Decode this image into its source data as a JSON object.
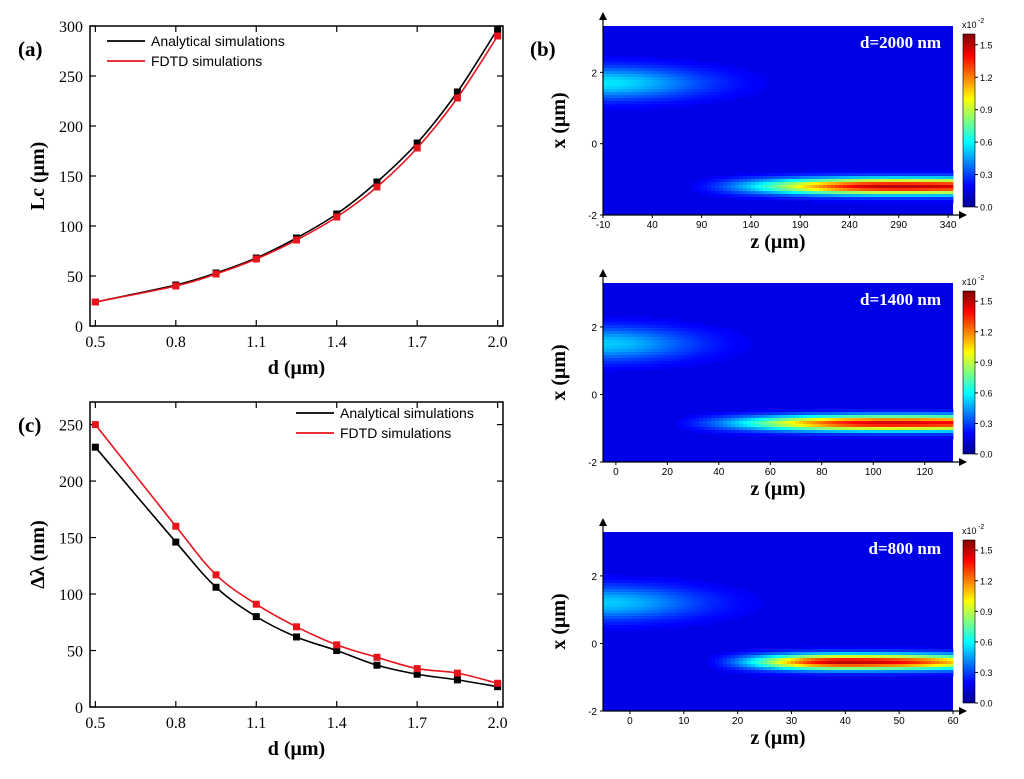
{
  "panel_labels": {
    "a": "(a)",
    "b": "(b)",
    "c": "(c)"
  },
  "colors": {
    "analytical": "#000000",
    "fdtd": "#e8141c",
    "heatmap_bg": "#0a2ba8"
  },
  "chart_data": [
    {
      "id": "a",
      "type": "line",
      "xlabel": "d (μm)",
      "ylabel": "Lc (μm)",
      "xlim": [
        0.48,
        2.02
      ],
      "ylim": [
        0,
        300
      ],
      "xticks": [
        0.5,
        0.8,
        1.1,
        1.4,
        1.7,
        2.0
      ],
      "xtick_labels": [
        "0.5",
        "0.8",
        "1.1",
        "1.4",
        "1.7",
        "2.0"
      ],
      "yticks": [
        0,
        50,
        100,
        150,
        200,
        250,
        300
      ],
      "ytick_labels": [
        "0",
        "50",
        "100",
        "150",
        "200",
        "250",
        "300"
      ],
      "legend": "top-left",
      "series": [
        {
          "name": "Analytical simulations",
          "color": "#000000",
          "x": [
            0.5,
            0.8,
            0.95,
            1.1,
            1.25,
            1.4,
            1.55,
            1.7,
            1.85,
            2.0
          ],
          "values": [
            24,
            41,
            53,
            68,
            88,
            112,
            144,
            183,
            234,
            297
          ]
        },
        {
          "name": "FDTD simulations",
          "color": "#e8141c",
          "x": [
            0.5,
            0.8,
            0.95,
            1.1,
            1.25,
            1.4,
            1.55,
            1.7,
            1.85,
            2.0
          ],
          "values": [
            24,
            40,
            52,
            67,
            86,
            109,
            139,
            178,
            228,
            290
          ]
        }
      ]
    },
    {
      "id": "c",
      "type": "line",
      "xlabel": "d (μm)",
      "ylabel": "Δλ (nm)",
      "xlim": [
        0.48,
        2.02
      ],
      "ylim": [
        0,
        270
      ],
      "xticks": [
        0.5,
        0.8,
        1.1,
        1.4,
        1.7,
        2.0
      ],
      "xtick_labels": [
        "0.5",
        "0.8",
        "1.1",
        "1.4",
        "1.7",
        "2.0"
      ],
      "yticks": [
        0,
        50,
        100,
        150,
        200,
        250
      ],
      "ytick_labels": [
        "0",
        "50",
        "100",
        "150",
        "200",
        "250"
      ],
      "legend": "top-right",
      "series": [
        {
          "name": "Analytical simulations",
          "color": "#000000",
          "x": [
            0.5,
            0.8,
            0.95,
            1.1,
            1.25,
            1.4,
            1.55,
            1.7,
            1.85,
            2.0
          ],
          "values": [
            230,
            146,
            106,
            80,
            62,
            50,
            37,
            29,
            24,
            18
          ]
        },
        {
          "name": "FDTD simulations",
          "color": "#e8141c",
          "x": [
            0.5,
            0.8,
            0.95,
            1.1,
            1.25,
            1.4,
            1.55,
            1.7,
            1.85,
            2.0
          ],
          "values": [
            250,
            160,
            117,
            91,
            71,
            55,
            44,
            34,
            30,
            21
          ]
        }
      ]
    },
    {
      "id": "b1",
      "type": "heatmap",
      "label": "d=2000 nm",
      "xlabel": "z (μm)",
      "ylabel": "x (μm)",
      "xlim": [
        -10,
        345
      ],
      "ylim": [
        -2,
        3.3
      ],
      "xticks": [
        -10,
        40,
        90,
        140,
        190,
        240,
        290,
        340
      ],
      "xtick_labels": [
        "-10",
        "40",
        "90",
        "140",
        "190",
        "240",
        "290",
        "340"
      ],
      "yticks": [
        -2,
        0,
        2
      ],
      "ytick_labels": [
        "-2",
        "0",
        "2"
      ],
      "colorbar": {
        "ticks": [
          0,
          0.3,
          0.6,
          0.9,
          1.2,
          1.5
        ],
        "labels": [
          "0.0",
          "0.3",
          "0.6",
          "0.9",
          "1.2",
          "1.5"
        ],
        "max": 1.6,
        "multiplier": "x10",
        "exponent": "-2"
      },
      "input_beam": {
        "z_center": -10,
        "x_center": 1.7,
        "z_extent": 100,
        "x_extent": 0.45,
        "peak": 0.45
      },
      "output_beam": {
        "z_start": 60,
        "z_peak": 285,
        "x_center": -1.2,
        "x_extent": 0.22,
        "peak": 1.5
      }
    },
    {
      "id": "b2",
      "type": "heatmap",
      "label": "d=1400 nm",
      "xlabel": "z (μm)",
      "ylabel": "x (μm)",
      "xlim": [
        -5,
        131
      ],
      "ylim": [
        -2,
        3.3
      ],
      "xticks": [
        0,
        20,
        40,
        60,
        80,
        100,
        120
      ],
      "xtick_labels": [
        "0",
        "20",
        "40",
        "60",
        "80",
        "100",
        "120"
      ],
      "yticks": [
        -2,
        0,
        2
      ],
      "ytick_labels": [
        "-2",
        "0",
        "2"
      ],
      "colorbar": {
        "ticks": [
          0,
          0.3,
          0.6,
          0.9,
          1.2,
          1.5
        ],
        "labels": [
          "0.0",
          "0.3",
          "0.6",
          "0.9",
          "1.2",
          "1.5"
        ],
        "max": 1.6,
        "multiplier": "x10",
        "exponent": "-2"
      },
      "input_beam": {
        "z_center": -5,
        "x_center": 1.5,
        "z_extent": 35,
        "x_extent": 0.5,
        "peak": 0.4
      },
      "output_beam": {
        "z_start": 15,
        "z_peak": 105,
        "x_center": -0.85,
        "x_extent": 0.22,
        "peak": 1.45
      }
    },
    {
      "id": "b3",
      "type": "heatmap",
      "label": "d=800 nm",
      "xlabel": "z (μm)",
      "ylabel": "x (μm)",
      "xlim": [
        -5,
        60
      ],
      "ylim": [
        -2,
        3.3
      ],
      "xticks": [
        0,
        10,
        20,
        30,
        40,
        50,
        60
      ],
      "xtick_labels": [
        "0",
        "10",
        "20",
        "30",
        "40",
        "50",
        "60"
      ],
      "yticks": [
        -2,
        0,
        2
      ],
      "ytick_labels": [
        "-2",
        "0",
        "2"
      ],
      "colorbar": {
        "ticks": [
          0,
          0.3,
          0.6,
          0.9,
          1.2,
          1.5
        ],
        "labels": [
          "0.0",
          "0.3",
          "0.6",
          "0.9",
          "1.2",
          "1.5"
        ],
        "max": 1.6,
        "multiplier": "x10",
        "exponent": "-2"
      },
      "input_beam": {
        "z_center": -5,
        "x_center": 1.2,
        "z_extent": 18,
        "x_extent": 0.5,
        "peak": 0.4
      },
      "output_beam": {
        "z_start": 12,
        "z_peak": 40,
        "x_center": -0.55,
        "x_extent": 0.22,
        "peak": 1.5
      }
    }
  ]
}
